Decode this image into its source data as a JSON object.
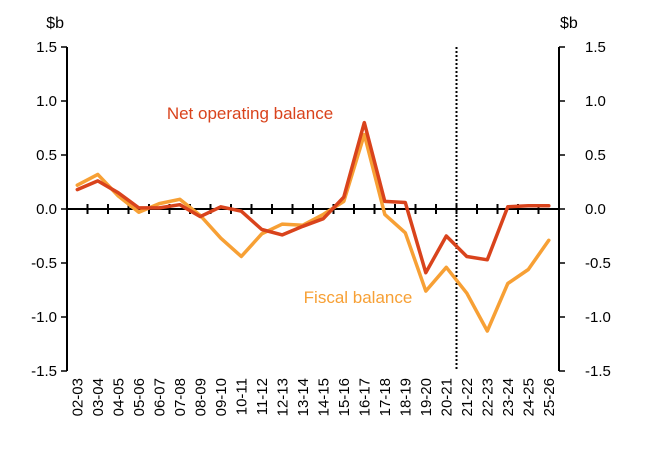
{
  "chart_data": {
    "type": "line",
    "unit_left": "$b",
    "unit_right": "$b",
    "ylim": [
      -1.5,
      1.5
    ],
    "y_ticks": [
      1.5,
      1.0,
      0.5,
      0.0,
      -0.5,
      -1.0,
      -1.5
    ],
    "y_tick_labels": [
      "1.5",
      "1.0",
      "0.5",
      "0.0",
      "-0.5",
      "-1.0",
      "-1.5"
    ],
    "categories": [
      "02-03",
      "03-04",
      "04-05",
      "05-06",
      "06-07",
      "07-08",
      "08-09",
      "09-10",
      "10-11",
      "11-12",
      "12-13",
      "13-14",
      "14-15",
      "15-16",
      "16-17",
      "17-18",
      "18-19",
      "19-20",
      "20-21",
      "21-22",
      "22-23",
      "23-24",
      "24-25",
      "25-26"
    ],
    "divider_after": "20-21",
    "grid": false,
    "series": [
      {
        "name": "Net operating balance",
        "color": "#d9431c",
        "values": [
          0.18,
          0.26,
          0.15,
          0.01,
          0.01,
          0.04,
          -0.07,
          0.02,
          -0.02,
          -0.19,
          -0.24,
          -0.16,
          -0.09,
          0.11,
          0.8,
          0.07,
          0.06,
          -0.59,
          -0.25,
          -0.44,
          -0.47,
          0.02,
          0.03,
          0.03
        ]
      },
      {
        "name": "Fiscal balance",
        "color": "#f7a035",
        "values": [
          0.22,
          0.32,
          0.12,
          -0.03,
          0.05,
          0.09,
          -0.06,
          -0.27,
          -0.44,
          -0.23,
          -0.14,
          -0.15,
          -0.05,
          0.07,
          0.69,
          -0.05,
          -0.22,
          -0.76,
          -0.54,
          -0.78,
          -1.13,
          -0.69,
          -0.56,
          -0.29
        ]
      }
    ]
  }
}
